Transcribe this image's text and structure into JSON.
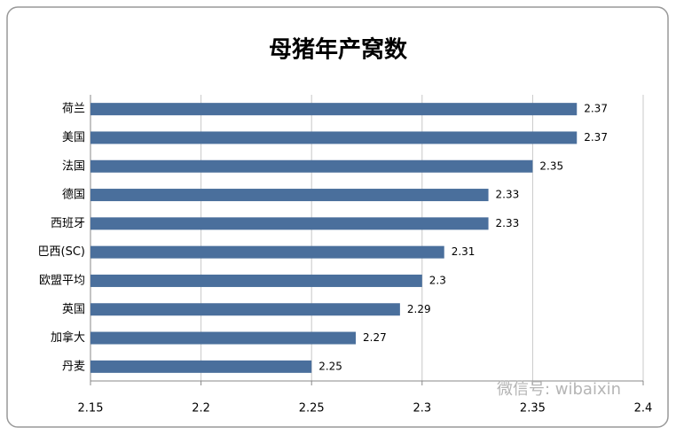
{
  "chart_data": {
    "type": "bar",
    "orientation": "horizontal",
    "title": "母猪年产窝数",
    "categories": [
      "荷兰",
      "美国",
      "法国",
      "德国",
      "西班牙",
      "巴西(SC)",
      "欧盟平均",
      "英国",
      "加拿大",
      "丹麦"
    ],
    "values": [
      2.37,
      2.37,
      2.35,
      2.33,
      2.33,
      2.31,
      2.3,
      2.29,
      2.27,
      2.25
    ],
    "color": "#4a6f9c",
    "xlim": [
      2.15,
      2.4
    ],
    "xticks": [
      2.15,
      2.2,
      2.25,
      2.3,
      2.35,
      2.4
    ],
    "grid": true,
    "watermark": "微信号: wibaixin"
  }
}
